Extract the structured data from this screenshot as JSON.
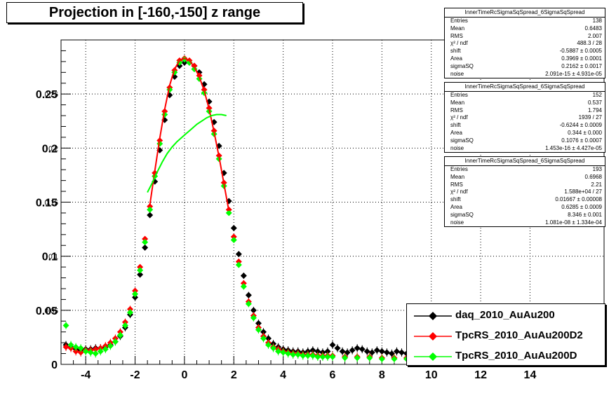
{
  "title": "Projection in [-160,-150] z range",
  "stats_boxes": [
    {
      "header": "InnerTimeRcSigmaSqSpread_6SigmaSqSpread",
      "rows": [
        {
          "label": "Entries",
          "value": "138"
        },
        {
          "label": "Mean",
          "value": "0.6483"
        },
        {
          "label": "RMS",
          "value": "2.007"
        },
        {
          "label": "χ² / ndf",
          "value": "488.3 / 28"
        },
        {
          "label": "shift",
          "value": "-0.5887 ± 0.0005"
        },
        {
          "label": "Area",
          "value": "0.3969 ± 0.0001"
        },
        {
          "label": "sigmaSQ",
          "value": "0.2162 ± 0.0017"
        },
        {
          "label": "noise",
          "value": "2.091e-15 ± 4.931e-05"
        }
      ]
    },
    {
      "header": "InnerTimeRcSigmaSqSpread_6SigmaSqSpread",
      "rows": [
        {
          "label": "Entries",
          "value": "152"
        },
        {
          "label": "Mean",
          "value": "0.537"
        },
        {
          "label": "RMS",
          "value": "1.794"
        },
        {
          "label": "χ² / ndf",
          "value": "1939 / 27"
        },
        {
          "label": "shift",
          "value": "-0.6244 ± 0.0009"
        },
        {
          "label": "Area",
          "value": "0.344 ± 0.000"
        },
        {
          "label": "sigmaSQ",
          "value": "0.1076 ± 0.0007"
        },
        {
          "label": "noise",
          "value": "1.453e-16 ± 4.427e-05"
        }
      ]
    },
    {
      "header": "InnerTimeRcSigmaSqSpread_6SigmaSqSpread",
      "rows": [
        {
          "label": "Entries",
          "value": "193"
        },
        {
          "label": "Mean",
          "value": "0.6968"
        },
        {
          "label": "RMS",
          "value": "2.21"
        },
        {
          "label": "χ² / ndf",
          "value": "1.588e+04 / 27"
        },
        {
          "label": "shift",
          "value": "0.01667 ± 0.00008"
        },
        {
          "label": "Area",
          "value": "0.6285 ± 0.0009"
        },
        {
          "label": "sigmaSQ",
          "value": "8.346 ± 0.001"
        },
        {
          "label": "noise",
          "value": "1.081e-08 ± 1.334e-04"
        }
      ]
    }
  ],
  "colors": {
    "daq": "#000000",
    "tpcrs_d2": "#ff0000",
    "tpcrs_d": "#00ff00",
    "grid": "#000000"
  },
  "chart_data": {
    "type": "scatter",
    "title": "Projection in [-160,-150] z range",
    "xlim": [
      -5,
      17
    ],
    "ylim": [
      0,
      0.3
    ],
    "xticks": [
      -4,
      -2,
      0,
      2,
      4,
      6,
      8,
      10,
      12,
      14
    ],
    "xtick_labels": [
      "-4",
      "-2",
      "0",
      "2",
      "4",
      "6",
      "8",
      "10",
      "12",
      "14"
    ],
    "yticks": [
      0.05,
      0.1,
      0.15,
      0.2,
      0.25
    ],
    "ytick_labels": [
      "0.05",
      "0.1",
      "0.15",
      "0.2",
      "0.25"
    ],
    "ytick_ghost": [
      "0.05",
      "0.1",
      "0.15",
      "0.2",
      "0.25"
    ],
    "y_zero_label": "0",
    "grid": true,
    "legend_position": "bottom-right",
    "series": [
      {
        "name": "daq_2010_AuAu200",
        "color": "#000000",
        "x": [
          -4.8,
          -4.6,
          -4.4,
          -4.2,
          -4.0,
          -3.8,
          -3.6,
          -3.4,
          -3.2,
          -3.0,
          -2.8,
          -2.6,
          -2.4,
          -2.2,
          -2.0,
          -1.8,
          -1.6,
          -1.4,
          -1.2,
          -1.0,
          -0.8,
          -0.6,
          -0.4,
          -0.2,
          0.0,
          0.2,
          0.4,
          0.6,
          0.8,
          1.0,
          1.2,
          1.4,
          1.6,
          1.8,
          2.0,
          2.2,
          2.4,
          2.6,
          2.8,
          3.0,
          3.2,
          3.4,
          3.6,
          3.8,
          4.0,
          4.2,
          4.4,
          4.6,
          4.8,
          5.0,
          5.2,
          5.4,
          5.6,
          5.8,
          6.0,
          6.2,
          6.4,
          6.6,
          6.8,
          7.0,
          7.2,
          7.4,
          7.6,
          7.8,
          8.0,
          8.2,
          8.4,
          8.6,
          8.8,
          9.0
        ],
        "y": [
          0.018,
          0.016,
          0.014,
          0.013,
          0.014,
          0.014,
          0.015,
          0.015,
          0.016,
          0.018,
          0.021,
          0.026,
          0.034,
          0.046,
          0.062,
          0.083,
          0.108,
          0.138,
          0.169,
          0.198,
          0.226,
          0.249,
          0.266,
          0.276,
          0.279,
          0.279,
          0.276,
          0.27,
          0.259,
          0.243,
          0.224,
          0.202,
          0.177,
          0.151,
          0.126,
          0.102,
          0.082,
          0.064,
          0.05,
          0.038,
          0.03,
          0.024,
          0.019,
          0.016,
          0.014,
          0.013,
          0.012,
          0.012,
          0.011,
          0.012,
          0.013,
          0.012,
          0.011,
          0.012,
          0.018,
          0.015,
          0.012,
          0.011,
          0.013,
          0.015,
          0.014,
          0.012,
          0.011,
          0.013,
          0.012,
          0.011,
          0.01,
          0.012,
          0.011,
          0.01
        ]
      },
      {
        "name": "TpcRS_2010_AuAu200D2",
        "color": "#ff0000",
        "x": [
          -4.8,
          -4.6,
          -4.4,
          -4.2,
          -4.0,
          -3.8,
          -3.6,
          -3.4,
          -3.2,
          -3.0,
          -2.8,
          -2.6,
          -2.4,
          -2.2,
          -2.0,
          -1.8,
          -1.6,
          -1.4,
          -1.2,
          -1.0,
          -0.8,
          -0.6,
          -0.4,
          -0.2,
          0.0,
          0.2,
          0.4,
          0.6,
          0.8,
          1.0,
          1.2,
          1.4,
          1.6,
          1.8,
          2.0,
          2.2,
          2.4,
          2.6,
          2.8,
          3.0,
          3.2,
          3.4,
          3.6,
          3.8,
          4.0,
          4.2,
          4.4,
          4.6,
          4.8,
          5.0,
          5.2,
          5.4,
          5.6,
          5.8,
          6.0,
          6.5,
          7.0,
          7.5,
          8.0,
          8.5,
          9.0
        ],
        "y": [
          0.016,
          0.015,
          0.012,
          0.011,
          0.013,
          0.013,
          0.014,
          0.015,
          0.017,
          0.02,
          0.024,
          0.03,
          0.039,
          0.051,
          0.068,
          0.09,
          0.116,
          0.146,
          0.177,
          0.207,
          0.234,
          0.256,
          0.272,
          0.281,
          0.283,
          0.281,
          0.276,
          0.267,
          0.254,
          0.237,
          0.216,
          0.193,
          0.168,
          0.143,
          0.118,
          0.095,
          0.075,
          0.058,
          0.045,
          0.034,
          0.026,
          0.02,
          0.016,
          0.014,
          0.012,
          0.011,
          0.01,
          0.01,
          0.009,
          0.009,
          0.009,
          0.008,
          0.008,
          0.008,
          0.008,
          0.007,
          0.007,
          0.007,
          0.006,
          0.006,
          0.006
        ]
      },
      {
        "name": "TpcRS_2010_AuAu200D",
        "color": "#00ff00",
        "x": [
          -4.8,
          -4.6,
          -4.4,
          -4.2,
          -4.0,
          -3.8,
          -3.6,
          -3.4,
          -3.2,
          -3.0,
          -2.8,
          -2.6,
          -2.4,
          -2.2,
          -2.0,
          -1.8,
          -1.6,
          -1.4,
          -1.2,
          -1.0,
          -0.8,
          -0.6,
          -0.4,
          -0.2,
          0.0,
          0.2,
          0.4,
          0.6,
          0.8,
          1.0,
          1.2,
          1.4,
          1.6,
          1.8,
          2.0,
          2.2,
          2.4,
          2.6,
          2.8,
          3.0,
          3.2,
          3.4,
          3.6,
          3.8,
          4.0,
          4.2,
          4.4,
          4.6,
          4.8,
          5.0,
          5.2,
          5.4,
          5.6,
          5.8,
          6.0,
          6.5,
          7.0,
          7.5,
          8.0,
          8.5,
          9.0
        ],
        "y": [
          0.036,
          0.018,
          0.016,
          0.015,
          0.012,
          0.011,
          0.01,
          0.012,
          0.014,
          0.017,
          0.021,
          0.027,
          0.036,
          0.048,
          0.065,
          0.087,
          0.113,
          0.143,
          0.174,
          0.204,
          0.231,
          0.254,
          0.27,
          0.279,
          0.282,
          0.279,
          0.273,
          0.264,
          0.251,
          0.234,
          0.213,
          0.19,
          0.165,
          0.14,
          0.115,
          0.092,
          0.072,
          0.056,
          0.043,
          0.032,
          0.024,
          0.018,
          0.015,
          0.012,
          0.011,
          0.01,
          0.009,
          0.009,
          0.008,
          0.008,
          0.008,
          0.007,
          0.007,
          0.007,
          0.007,
          0.006,
          0.006,
          0.006,
          0.005,
          0.005,
          0.005
        ]
      }
    ],
    "fit_curves": [
      {
        "color": "#ff0000",
        "x": [
          -1.4,
          -1.2,
          -1.0,
          -0.8,
          -0.6,
          -0.4,
          -0.2,
          0.0,
          0.2,
          0.4,
          0.6,
          0.8,
          1.0,
          1.2,
          1.4,
          1.6,
          1.8
        ],
        "y": [
          0.148,
          0.179,
          0.209,
          0.236,
          0.258,
          0.273,
          0.281,
          0.283,
          0.281,
          0.275,
          0.266,
          0.253,
          0.236,
          0.215,
          0.192,
          0.167,
          0.142
        ]
      },
      {
        "color": "#00ff00",
        "x": [
          -1.5,
          -1.3,
          -1.1,
          -0.9,
          -0.7,
          -0.5,
          -0.3,
          -0.1,
          0.1,
          0.3,
          0.5,
          0.7,
          0.9,
          1.1,
          1.3,
          1.5,
          1.7
        ],
        "y": [
          0.159,
          0.168,
          0.178,
          0.187,
          0.195,
          0.201,
          0.206,
          0.21,
          0.214,
          0.218,
          0.222,
          0.225,
          0.228,
          0.23,
          0.231,
          0.231,
          0.23
        ]
      }
    ]
  },
  "legend": [
    {
      "label": "daq_2010_AuAu200",
      "color": "#000000"
    },
    {
      "label": "TpcRS_2010_AuAu200D2",
      "color": "#ff0000"
    },
    {
      "label": "TpcRS_2010_AuAu200D",
      "color": "#00ff00"
    }
  ]
}
